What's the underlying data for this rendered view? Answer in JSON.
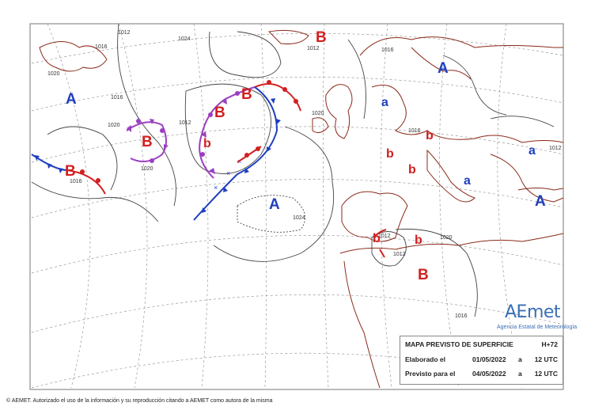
{
  "pressure_centers": [
    {
      "id": "A1",
      "label": "A",
      "kind": "high",
      "color": "#1f3fbf"
    },
    {
      "id": "B1",
      "label": "B",
      "kind": "low",
      "color": "#d22020"
    },
    {
      "id": "B2",
      "label": "B",
      "kind": "low",
      "color": "#d22020"
    },
    {
      "id": "B3",
      "label": "B",
      "kind": "low",
      "color": "#d22020"
    },
    {
      "id": "b1",
      "label": "b",
      "kind": "low",
      "color": "#d22020"
    },
    {
      "id": "B4",
      "label": "B",
      "kind": "low",
      "color": "#d22020"
    },
    {
      "id": "B5",
      "label": "B",
      "kind": "low",
      "color": "#d22020"
    },
    {
      "id": "A2",
      "label": "A",
      "kind": "high",
      "color": "#1f3fbf"
    },
    {
      "id": "A3",
      "label": "A",
      "kind": "high",
      "color": "#1f3fbf"
    },
    {
      "id": "a1",
      "label": "a",
      "kind": "high",
      "color": "#1f3fbf"
    },
    {
      "id": "b2",
      "label": "b",
      "kind": "low",
      "color": "#d22020"
    },
    {
      "id": "b3",
      "label": "b",
      "kind": "low",
      "color": "#d22020"
    },
    {
      "id": "b4",
      "label": "b",
      "kind": "low",
      "color": "#d22020"
    },
    {
      "id": "a2",
      "label": "a",
      "kind": "high",
      "color": "#1f3fbf"
    },
    {
      "id": "a3",
      "label": "a",
      "kind": "high",
      "color": "#1f3fbf"
    },
    {
      "id": "A4",
      "label": "A",
      "kind": "high",
      "color": "#1f3fbf"
    },
    {
      "id": "b5",
      "label": "b",
      "kind": "low",
      "color": "#d22020"
    },
    {
      "id": "b6",
      "label": "b",
      "kind": "low",
      "color": "#d22020"
    },
    {
      "id": "B6",
      "label": "B",
      "kind": "low",
      "color": "#d22020"
    }
  ],
  "isobar_labels": [
    "1012",
    "1016",
    "1020",
    "1024",
    "1012",
    "1016",
    "1020",
    "1020",
    "1016",
    "1012",
    "1016",
    "1020",
    "1016",
    "1012",
    "1012",
    "1024",
    "1020",
    "1016",
    "1012"
  ],
  "info": {
    "title": "MAPA PREVISTO DE SUPERFICIE",
    "lead": "H+72",
    "made_label": "Elaborado el",
    "made_date": "01/05/2022",
    "made_sep": "a",
    "made_time": "12 UTC",
    "valid_label": "Previsto para el",
    "valid_date": "04/05/2022",
    "valid_sep": "a",
    "valid_time": "12 UTC"
  },
  "logo": {
    "name": "AEmet",
    "subtitle": "Agencia Estatal de Meteorología"
  },
  "footer": "© AEMET. Autorizado el uso de la información y su reproducción citando a AEMET como autora de la misma",
  "colors": {
    "high": "#1f3fbf",
    "low": "#d22020",
    "occluded": "#9b3fc0",
    "land": "#8b2a1a",
    "isobar": "#555555",
    "graticule": "#9a9a9a"
  }
}
